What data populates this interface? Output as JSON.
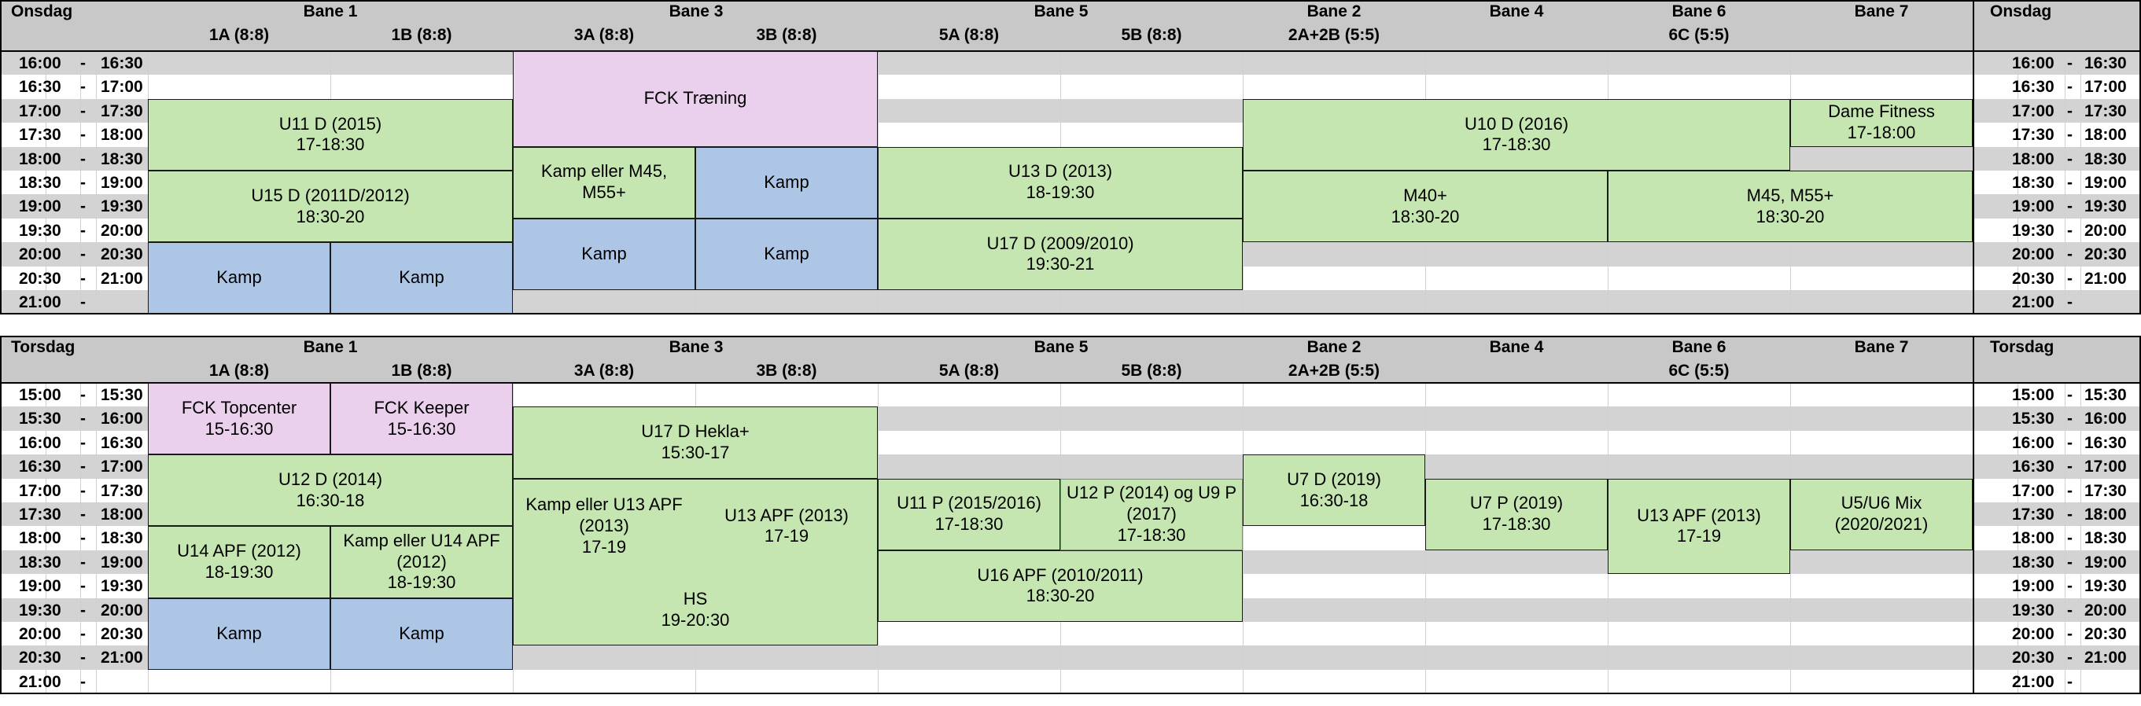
{
  "days": [
    {
      "name": "Onsdag",
      "lanes": [
        {
          "title": "Bane 1",
          "fields": [
            "1A (8:8)",
            "1B (8:8)"
          ]
        },
        {
          "title": "Bane 3",
          "fields": [
            "3A (8:8)",
            "3B (8:8)"
          ]
        },
        {
          "title": "Bane 5",
          "fields": [
            "5A (8:8)",
            "5B (8:8)"
          ]
        },
        {
          "title": "Bane 2",
          "fields": [
            "2A+2B (5:5)"
          ]
        },
        {
          "title": "Bane 4",
          "fields": []
        },
        {
          "title": "Bane 6",
          "fields": [
            "6C (5:5)"
          ]
        },
        {
          "title": "Bane 7",
          "fields": []
        }
      ],
      "times": [
        [
          "16:00",
          "16:30"
        ],
        [
          "16:30",
          "17:00"
        ],
        [
          "17:00",
          "17:30"
        ],
        [
          "17:30",
          "18:00"
        ],
        [
          "18:00",
          "18:30"
        ],
        [
          "18:30",
          "19:00"
        ],
        [
          "19:00",
          "19:30"
        ],
        [
          "19:30",
          "20:00"
        ],
        [
          "20:00",
          "20:30"
        ],
        [
          "20:30",
          "21:00"
        ],
        [
          "21:00",
          ""
        ]
      ],
      "bookings": [
        {
          "line1": "FCK Træning",
          "line2": "",
          "kind": "training"
        },
        {
          "line1": "U11 D (2015)",
          "line2": "17-18:30",
          "kind": "team"
        },
        {
          "line1": "U15 D (2011D/2012)",
          "line2": "18:30-20",
          "kind": "team"
        },
        {
          "line1": "Kamp",
          "line2": "",
          "kind": "match"
        },
        {
          "line1": "Kamp",
          "line2": "",
          "kind": "match"
        },
        {
          "line1": "Kamp eller M45, M55+",
          "line2": "",
          "kind": "team"
        },
        {
          "line1": "Kamp",
          "line2": "",
          "kind": "match"
        },
        {
          "line1": "Kamp",
          "line2": "",
          "kind": "match"
        },
        {
          "line1": "Kamp",
          "line2": "",
          "kind": "match"
        },
        {
          "line1": "U13 D (2013)",
          "line2": "18-19:30",
          "kind": "team"
        },
        {
          "line1": "U17 D (2009/2010)",
          "line2": "19:30-21",
          "kind": "team"
        },
        {
          "line1": "U10 D (2016)",
          "line2": "17-18:30",
          "kind": "team"
        },
        {
          "line1": "Dame Fitness",
          "line2": "17-18:00",
          "kind": "team"
        },
        {
          "line1": "M40+",
          "line2": "18:30-20",
          "kind": "team"
        },
        {
          "line1": "M45, M55+",
          "line2": "18:30-20",
          "kind": "team"
        }
      ]
    },
    {
      "name": "Torsdag",
      "lanes": [
        {
          "title": "Bane 1",
          "fields": [
            "1A (8:8)",
            "1B (8:8)"
          ]
        },
        {
          "title": "Bane 3",
          "fields": [
            "3A (8:8)",
            "3B (8:8)"
          ]
        },
        {
          "title": "Bane 5",
          "fields": [
            "5A (8:8)",
            "5B (8:8)"
          ]
        },
        {
          "title": "Bane 2",
          "fields": [
            "2A+2B (5:5)"
          ]
        },
        {
          "title": "Bane 4",
          "fields": []
        },
        {
          "title": "Bane 6",
          "fields": [
            "6C (5:5)"
          ]
        },
        {
          "title": "Bane 7",
          "fields": []
        }
      ],
      "times": [
        [
          "15:00",
          "15:30"
        ],
        [
          "15:30",
          "16:00"
        ],
        [
          "16:00",
          "16:30"
        ],
        [
          "16:30",
          "17:00"
        ],
        [
          "17:00",
          "17:30"
        ],
        [
          "17:30",
          "18:00"
        ],
        [
          "18:00",
          "18:30"
        ],
        [
          "18:30",
          "19:00"
        ],
        [
          "19:00",
          "19:30"
        ],
        [
          "19:30",
          "20:00"
        ],
        [
          "20:00",
          "20:30"
        ],
        [
          "20:30",
          "21:00"
        ],
        [
          "21:00",
          ""
        ]
      ],
      "bookings": [
        {
          "line1": "FCK Topcenter",
          "line2": "15-16:30",
          "kind": "training"
        },
        {
          "line1": "FCK Keeper",
          "line2": "15-16:30",
          "kind": "training"
        },
        {
          "line1": "U12 D (2014)",
          "line2": "16:30-18",
          "kind": "team"
        },
        {
          "line1": "U14 APF (2012)",
          "line2": "18-19:30",
          "kind": "team"
        },
        {
          "line1": "Kamp eller U14 APF (2012)",
          "line2": "18-19:30",
          "kind": "team"
        },
        {
          "line1": "Kamp",
          "line2": "",
          "kind": "match"
        },
        {
          "line1": "Kamp",
          "line2": "",
          "kind": "match"
        },
        {
          "line1": "U17 D Hekla+",
          "line2": "15:30-17",
          "kind": "team"
        },
        {
          "line1": "Kamp eller U13 APF (2013)",
          "line2": "17-19",
          "kind": "team"
        },
        {
          "line1": "U13 APF (2013)",
          "line2": "17-19",
          "kind": "team"
        },
        {
          "line1": "HS",
          "line2": "19-20:30",
          "kind": "team"
        },
        {
          "line1": "U11 P (2015/2016)",
          "line2": "17-18:30",
          "kind": "team"
        },
        {
          "line1": "U12 P (2014) og U9 P (2017)",
          "line2": "17-18:30",
          "kind": "team"
        },
        {
          "line1": "U16 APF (2010/2011)",
          "line2": "18:30-20",
          "kind": "team"
        },
        {
          "line1": "U7 D (2019)",
          "line2": "16:30-18",
          "kind": "team"
        },
        {
          "line1": "U7 P (2019)",
          "line2": "17-18:30",
          "kind": "team"
        },
        {
          "line1": "U13 APF (2013)",
          "line2": "17-19",
          "kind": "team"
        },
        {
          "line1": "U5/U6 Mix (2020/2021)",
          "line2": "",
          "kind": "team"
        }
      ]
    }
  ],
  "colors": {
    "header": "#c8c8c8",
    "stripe": "#d3d3d3",
    "team": "#c5e6b0",
    "match": "#aec6e6",
    "training": "#ead0ec"
  }
}
